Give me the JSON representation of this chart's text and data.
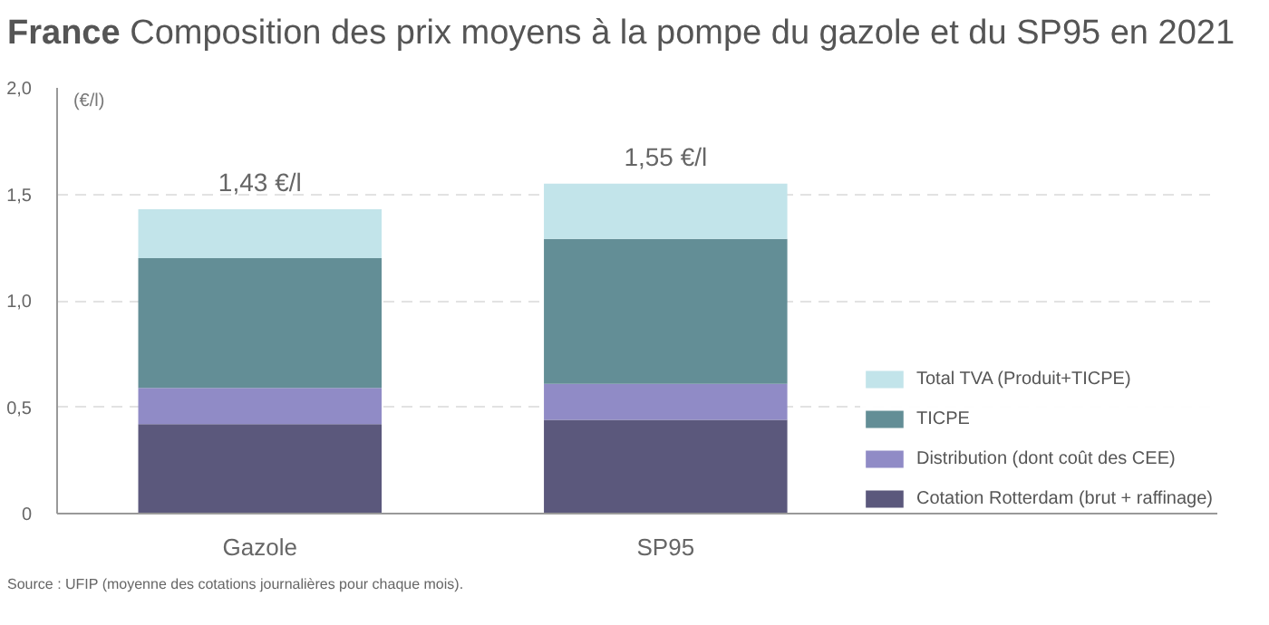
{
  "chart_data": {
    "type": "bar",
    "stacked": true,
    "title": "France",
    "subtitle": "Composition des prix moyens à la pompe du gazole et du SP95 en 2021",
    "ylabel": "(€/l)",
    "categories": [
      "Gazole",
      "SP95"
    ],
    "series": [
      {
        "name": "Cotation Rotterdam (brut + raffinage)",
        "color": "#5b587c",
        "values": [
          0.42,
          0.44
        ]
      },
      {
        "name": "Distribution (dont coût des CEE)",
        "color": "#908bc6",
        "values": [
          0.17,
          0.17
        ]
      },
      {
        "name": "TICPE",
        "color": "#638e96",
        "values": [
          0.61,
          0.68
        ]
      },
      {
        "name": "Total TVA (Produit+TICPE)",
        "color": "#c2e4ea",
        "values": [
          0.23,
          0.26
        ]
      }
    ],
    "totals": [
      "1,43 €/l",
      "1,55 €/l"
    ],
    "ylim": [
      0,
      2
    ],
    "yticks": [
      {
        "value": 0,
        "label": "0"
      },
      {
        "value": 0.5,
        "label": "0,5"
      },
      {
        "value": 1,
        "label": "1,0"
      },
      {
        "value": 1.5,
        "label": "1,5"
      },
      {
        "value": 2,
        "label": "2,0"
      }
    ],
    "grid": "y",
    "legend": "bottom right",
    "annotations": [
      "Source : UFIP (moyenne des cotations journalières pour chaque mois)."
    ]
  }
}
